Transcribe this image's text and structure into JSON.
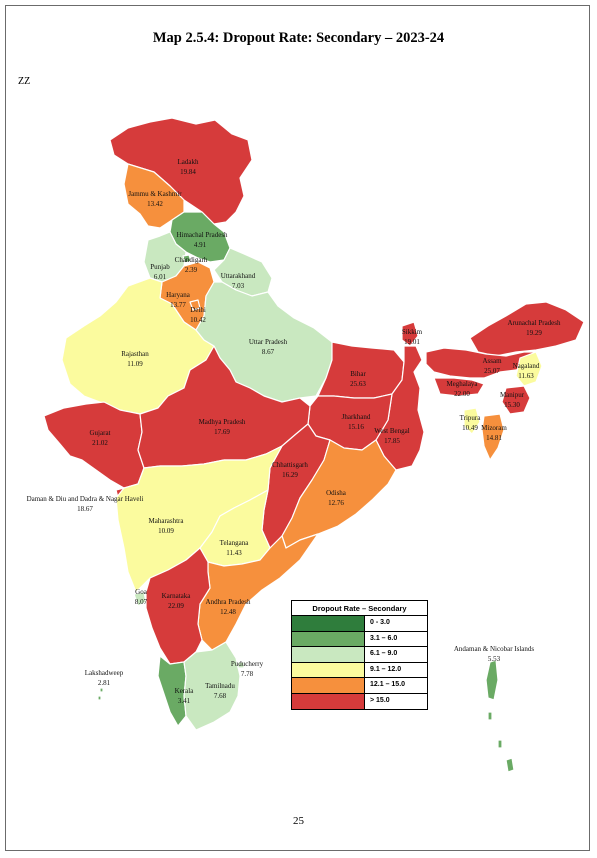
{
  "title": "Map 2.5.4: Dropout Rate: Secondary – 2023-24",
  "corner_note": "ZZ",
  "page_number": "25",
  "colors": {
    "range_0_3": "#2f7d3c",
    "range_3_6": "#6aaa64",
    "range_6_9": "#c9e8c0",
    "range_9_12": "#fbfb9e",
    "range_12_15": "#f6903d",
    "range_above_15": "#d63b3b",
    "border": "#ffffff"
  },
  "legend": {
    "title": "Dropout Rate – Secondary",
    "items": [
      {
        "label": "0 - 3.0",
        "color": "#2f7d3c"
      },
      {
        "label": "3.1 – 6.0",
        "color": "#6aaa64"
      },
      {
        "label": "6.1 – 9.0",
        "color": "#c9e8c0"
      },
      {
        "label": "9.1 – 12.0",
        "color": "#fbfb9e"
      },
      {
        "label": "12.1 – 15.0",
        "color": "#f6903d"
      },
      {
        "label": "> 15.0",
        "color": "#d63b3b"
      }
    ]
  },
  "regions": [
    {
      "name": "Ladakh",
      "value": "19.84"
    },
    {
      "name": "Jammu & Kashmir",
      "value": "13.42"
    },
    {
      "name": "Himachal Pradesh",
      "value": "4.91"
    },
    {
      "name": "Punjab",
      "value": "6.01"
    },
    {
      "name": "Chandigarh",
      "value": "2.39"
    },
    {
      "name": "Uttarakhand",
      "value": "7.03"
    },
    {
      "name": "Haryana",
      "value": "13.77"
    },
    {
      "name": "Delhi",
      "value": "10.42"
    },
    {
      "name": "Rajasthan",
      "value": "11.09"
    },
    {
      "name": "Uttar Pradesh",
      "value": "8.67"
    },
    {
      "name": "Sikkim",
      "value": "19.01"
    },
    {
      "name": "Arunachal Pradesh",
      "value": "19.29"
    },
    {
      "name": "Assam",
      "value": "25.07"
    },
    {
      "name": "Nagaland",
      "value": "11.63"
    },
    {
      "name": "Meghalaya",
      "value": "22.00"
    },
    {
      "name": "Manipur",
      "value": "15.30"
    },
    {
      "name": "Bihar",
      "value": "25.63"
    },
    {
      "name": "Jharkhand",
      "value": "15.16"
    },
    {
      "name": "West Bengal",
      "value": "17.85"
    },
    {
      "name": "Tripura",
      "value": "10.49"
    },
    {
      "name": "Mizoram",
      "value": "14.81"
    },
    {
      "name": "Gujarat",
      "value": "21.02"
    },
    {
      "name": "Madhya Pradesh",
      "value": "17.69"
    },
    {
      "name": "Chhattisgarh",
      "value": "16.29"
    },
    {
      "name": "Odisha",
      "value": "12.76"
    },
    {
      "name": "Daman & Diu and Dadra & Nagar Haveli",
      "value": "18.67"
    },
    {
      "name": "Maharashtra",
      "value": "10.09"
    },
    {
      "name": "Telangana",
      "value": "11.43"
    },
    {
      "name": "Goa",
      "value": "8.07"
    },
    {
      "name": "Karnataka",
      "value": "22.09"
    },
    {
      "name": "Andhra Pradesh",
      "value": "12.48"
    },
    {
      "name": "Lakshadweep",
      "value": "2.81"
    },
    {
      "name": "Puducherry",
      "value": "7.78"
    },
    {
      "name": "Kerala",
      "value": "3.41"
    },
    {
      "name": "Tamilnadu",
      "value": "7.68"
    },
    {
      "name": "Andaman & Nicobar Islands",
      "value": "5.53"
    }
  ]
}
